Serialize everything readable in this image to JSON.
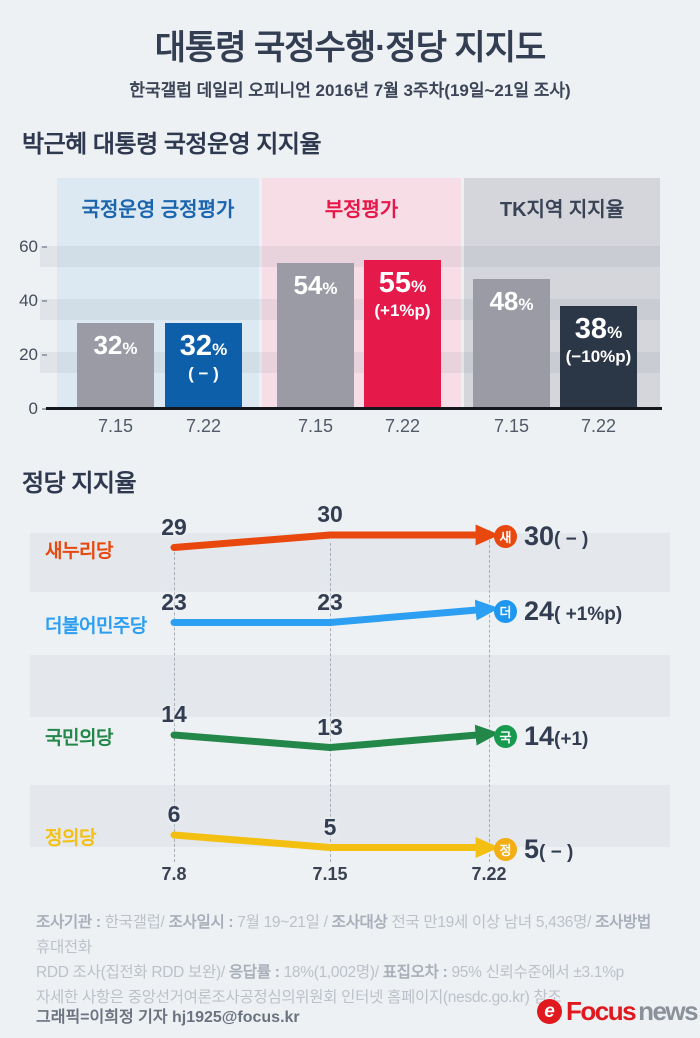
{
  "header": {
    "title": "대통령 국정수행·정당 지지도",
    "subtitle": "한국갤럽 데일리 오피니언 2016년 7월 3주차(19일~21일 조사)"
  },
  "sections": {
    "approval_heading": "박근혜 대통령 국정운영 지지율",
    "party_heading": "정당 지지율"
  },
  "chart_data": [
    {
      "type": "bar",
      "title": "박근혜 대통령 국정운영 지지율",
      "categories": [
        "7.15",
        "7.22"
      ],
      "ylim": [
        0,
        60
      ],
      "yticks": [
        0,
        20,
        40,
        60
      ],
      "unit": "%",
      "grid": "horizontal-stripes",
      "groups": [
        {
          "name": "국정운영 긍정평가",
          "header_color": "#1b65ae",
          "panel_bg": "#dde9f2",
          "bars": [
            {
              "category": "7.15",
              "value": 32,
              "label": "32",
              "unit": "%",
              "delta": "",
              "color": "#9a9ba4",
              "emphasis": false
            },
            {
              "category": "7.22",
              "value": 32,
              "label": "32",
              "unit": "%",
              "delta": "( − )",
              "color": "#0e5fa9",
              "emphasis": true
            }
          ]
        },
        {
          "name": "부정평가",
          "header_color": "#e7174a",
          "panel_bg": "#f7dee6",
          "bars": [
            {
              "category": "7.15",
              "value": 54,
              "label": "54",
              "unit": "%",
              "delta": "",
              "color": "#9a9ba4",
              "emphasis": false
            },
            {
              "category": "7.22",
              "value": 55,
              "label": "55",
              "unit": "%",
              "delta": "(+1%p)",
              "color": "#e6194b",
              "emphasis": true
            }
          ]
        },
        {
          "name": "TK지역 지지율",
          "header_color": "#3a4356",
          "panel_bg": "#d4d6db",
          "bars": [
            {
              "category": "7.15",
              "value": 48,
              "label": "48",
              "unit": "%",
              "delta": "",
              "color": "#9a9ba4",
              "emphasis": false
            },
            {
              "category": "7.22",
              "value": 38,
              "label": "38",
              "unit": "%",
              "delta": "(−10%p)",
              "color": "#2b3747",
              "emphasis": true
            }
          ]
        }
      ]
    },
    {
      "type": "line",
      "title": "정당 지지율",
      "x": [
        "7.8",
        "7.15",
        "7.22"
      ],
      "ylim": [
        0,
        35
      ],
      "legend_position": "left-of-lines",
      "series": [
        {
          "name": "새누리당",
          "badge": "새",
          "color": "#e8470d",
          "badge_color": "#e8470d",
          "values": [
            29,
            30,
            30
          ],
          "final": "30",
          "delta": "( − )"
        },
        {
          "name": "더불어민주당",
          "badge": "더",
          "color": "#2d9ff2",
          "badge_color": "#1f97f0",
          "values": [
            23,
            23,
            24
          ],
          "final": "24",
          "delta": "( +1%p)"
        },
        {
          "name": "국민의당",
          "badge": "국",
          "color": "#238749",
          "badge_color": "#17994e",
          "values": [
            14,
            13,
            14
          ],
          "final": "14",
          "delta": "(+1)"
        },
        {
          "name": "정의당",
          "badge": "정",
          "color": "#f3c011",
          "badge_color": "#f2ae13",
          "values": [
            6,
            5,
            5
          ],
          "final": "5",
          "delta": "( − )"
        }
      ]
    }
  ],
  "footer": {
    "info_lines": [
      [
        {
          "text": "조사기관 : ",
          "bold": true
        },
        {
          "text": "한국갤럽/ ",
          "bold": false
        },
        {
          "text": "조사일시 : ",
          "bold": true
        },
        {
          "text": "7월 19~21일 / ",
          "bold": false
        },
        {
          "text": "조사대상 ",
          "bold": true
        },
        {
          "text": "전국 만19세 이상 남녀 5,436명/ ",
          "bold": false
        },
        {
          "text": "조사방법 ",
          "bold": true
        },
        {
          "text": "휴대전화",
          "bold": false
        }
      ],
      [
        {
          "text": "RDD 조사(집전화 RDD 보완)/ ",
          "bold": false
        },
        {
          "text": "응답률 : ",
          "bold": true
        },
        {
          "text": "18%(1,002명)/ ",
          "bold": false
        },
        {
          "text": "표집오차 : ",
          "bold": true
        },
        {
          "text": "95% 신뢰수준에서 ±3.1%p",
          "bold": false
        }
      ],
      [
        {
          "text": "자세한 사항은 중앙선거여론조사공정심의위원회 인터넷 홈페이지(nesdc.go.kr) 참조",
          "bold": false
        }
      ]
    ],
    "credit": "그래픽=이희정 기자 hj1925@focus.kr",
    "logo": {
      "mark": "e",
      "word_red": "Focus",
      "word_gray": "news"
    }
  }
}
